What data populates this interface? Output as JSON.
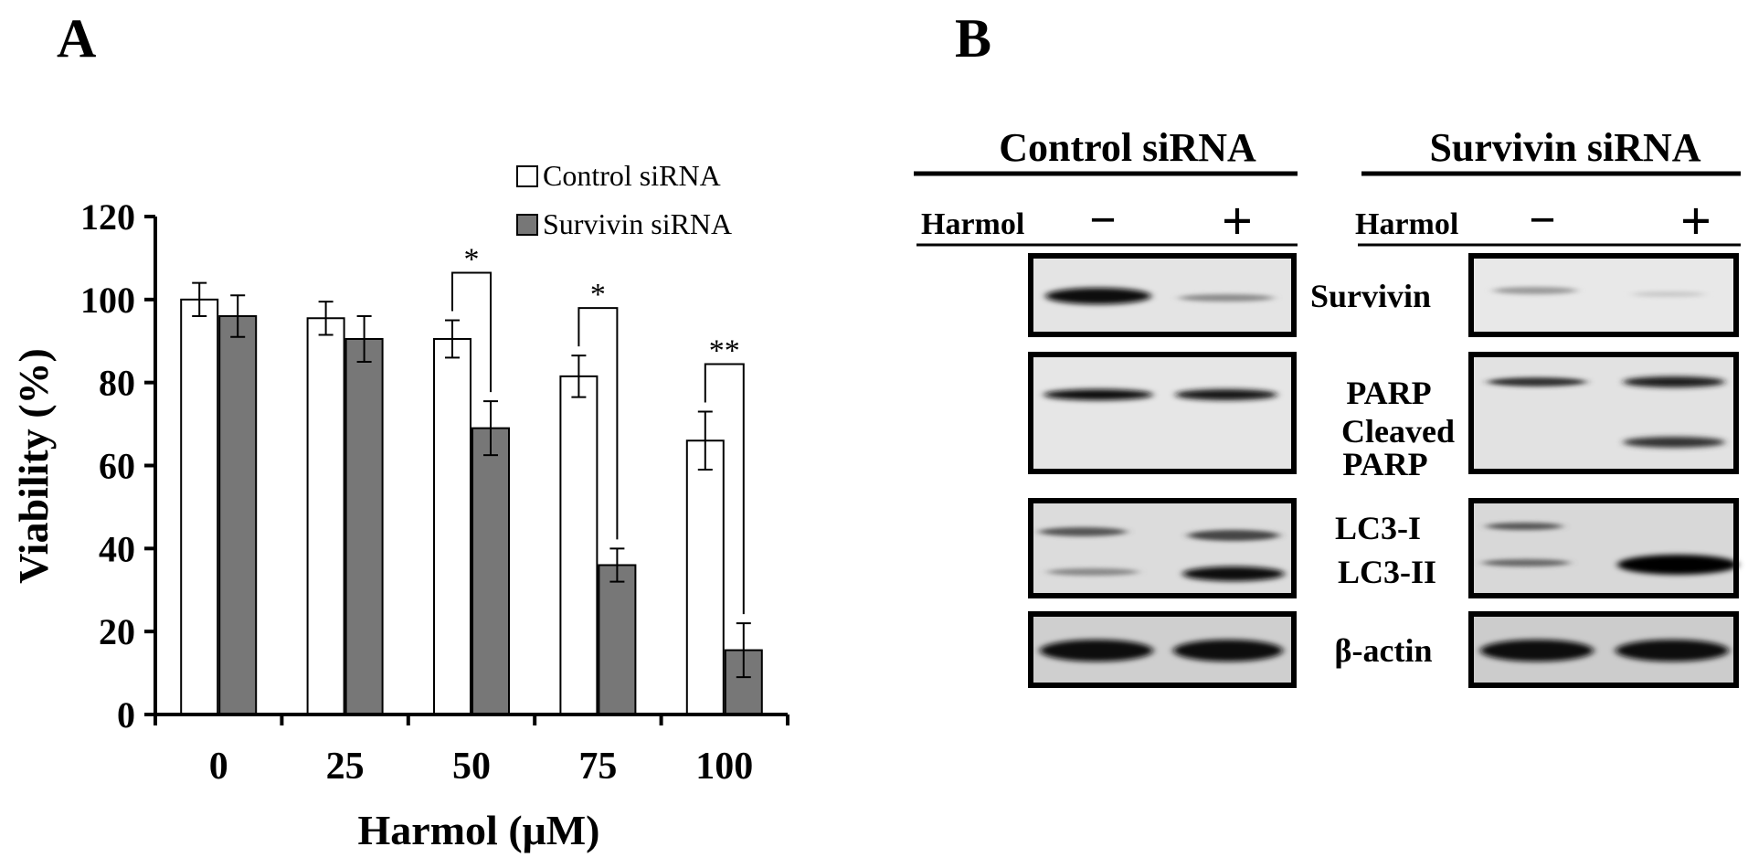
{
  "panel_a": {
    "label": "A",
    "chart_data": {
      "type": "bar",
      "title": "",
      "xlabel": "Harmol (μM)",
      "ylabel": "Viability (%)",
      "categories": [
        "0",
        "25",
        "50",
        "75",
        "100"
      ],
      "ylim": [
        0,
        120
      ],
      "yticks": [
        "0",
        "20",
        "40",
        "60",
        "80",
        "100",
        "120"
      ],
      "grid": false,
      "legend_position": "top-right",
      "series": [
        {
          "name": "Control siRNA",
          "values": [
            100,
            95.5,
            90.5,
            81.5,
            66
          ],
          "errors": [
            4,
            4,
            4.5,
            5,
            7
          ],
          "color": "#ffffff"
        },
        {
          "name": "Survivin siRNA",
          "values": [
            96,
            90.5,
            69,
            36,
            15.5
          ],
          "errors": [
            5,
            5.5,
            6.5,
            4,
            6.5
          ],
          "color": "#777777"
        }
      ],
      "annotations": [
        {
          "category_index": 2,
          "text": "*"
        },
        {
          "category_index": 3,
          "text": "*"
        },
        {
          "category_index": 4,
          "text": "**"
        }
      ]
    }
  },
  "panel_b": {
    "label": "B",
    "groups": [
      {
        "title": "Control siRNA",
        "treatment_label": "Harmol",
        "minus": "−",
        "plus": "+"
      },
      {
        "title": "Survivin siRNA",
        "treatment_label": "Harmol",
        "minus": "−",
        "plus": "+"
      }
    ],
    "blot_labels": {
      "survivin": "Survivin",
      "parp": "PARP",
      "cleaved_line1": "Cleaved",
      "cleaved_line2": "PARP",
      "lc3_i": "LC3-I",
      "lc3_ii": "LC3-II",
      "actin": "β-actin"
    }
  }
}
